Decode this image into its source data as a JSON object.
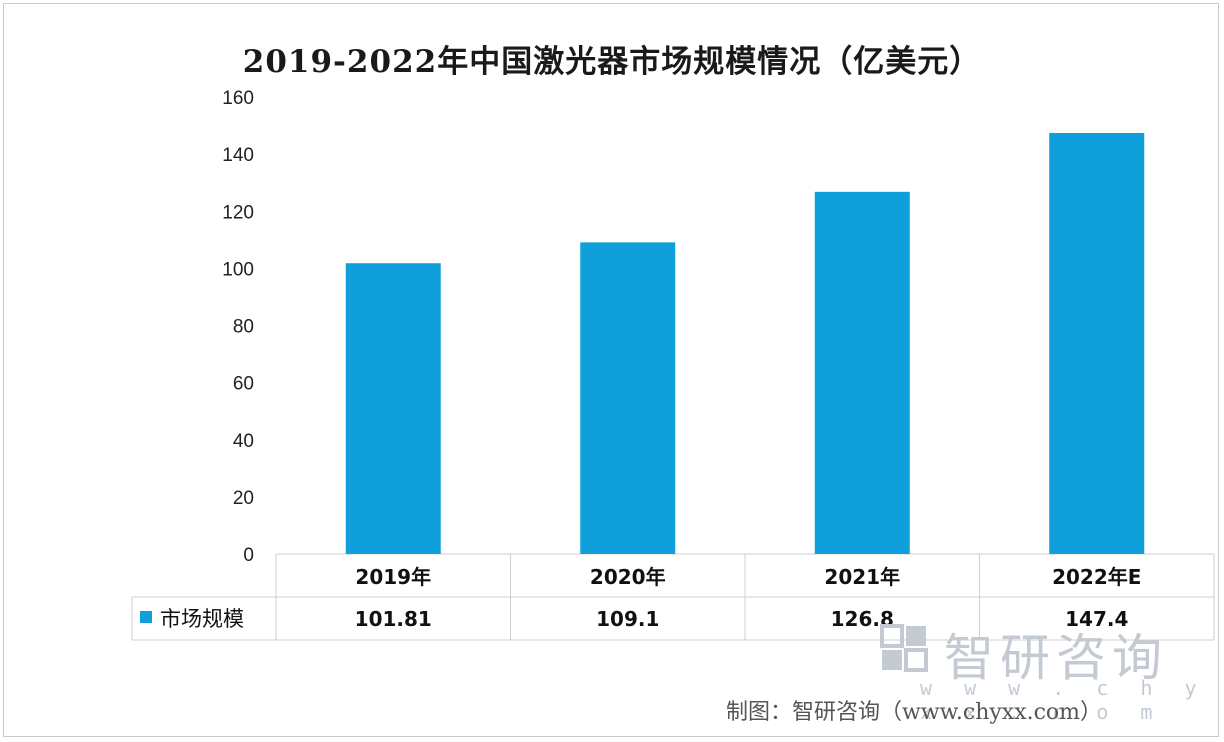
{
  "chart_data": {
    "type": "bar",
    "title": "2019-2022年中国激光器市场规模情况（亿美元）",
    "categories": [
      "2019年",
      "2020年",
      "2021年",
      "2022年E"
    ],
    "series": [
      {
        "name": "市场规模",
        "values": [
          101.81,
          109.1,
          126.8,
          147.4
        ],
        "value_labels": [
          "101.81",
          "109.1",
          "126.8",
          "147.4"
        ],
        "color": "#0fa0db"
      }
    ],
    "ylim": [
      0,
      160
    ],
    "yticks": [
      0,
      20,
      40,
      60,
      80,
      100,
      120,
      140,
      160
    ],
    "grid": false,
    "data_table": true
  },
  "watermark": {
    "name": "智研咨询",
    "url": "w w w . c h y x x . c o m"
  },
  "source_text": "制图：智研咨询（www.chyxx.com）",
  "colors": {
    "bar": "#0fa0db",
    "table_line": "#cfcfcf",
    "watermark": "#c4cad4"
  }
}
